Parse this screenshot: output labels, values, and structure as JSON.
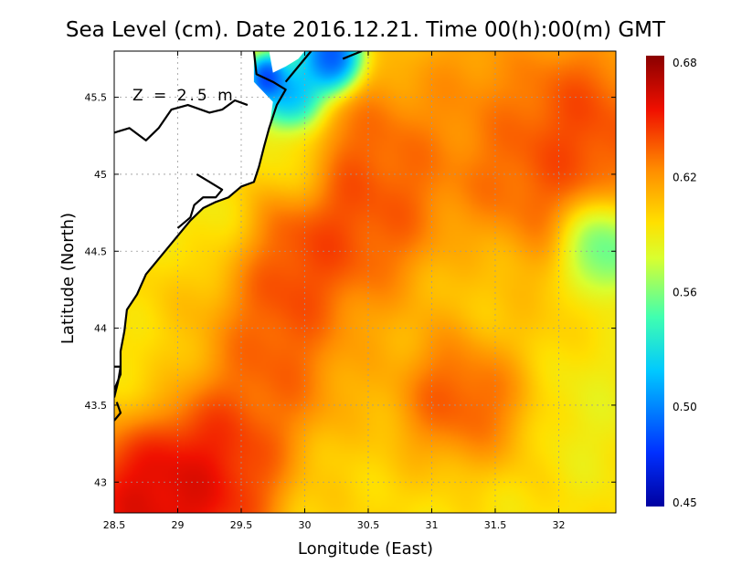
{
  "chart_data": {
    "type": "heatmap",
    "title": "Sea Level (cm). Date 2016.12.21. Time 00(h):00(m) GMT",
    "xlabel": "Longitude (East)",
    "ylabel": "Latitude (North)",
    "annotation": "Z = 2.5 m",
    "xlim": [
      28.5,
      32.45
    ],
    "ylim": [
      42.8,
      45.8
    ],
    "x_ticks": [
      28.5,
      29,
      29.5,
      30,
      30.5,
      31,
      31.5,
      32
    ],
    "x_tick_labels": [
      "28.5",
      "29",
      "29.5",
      "30",
      "30.5",
      "31",
      "31.5",
      "32"
    ],
    "y_ticks": [
      43,
      43.5,
      44,
      44.5,
      45,
      45.5
    ],
    "y_tick_labels": [
      "43",
      "43.5",
      "44",
      "44.5",
      "45",
      "45.5"
    ],
    "grid": true,
    "colorbar": {
      "min": 0.45,
      "max": 0.68,
      "ticks": [
        0.45,
        0.5,
        0.56,
        0.62,
        0.68
      ],
      "tick_labels": [
        "0.45",
        "0.50",
        "0.56",
        "0.62",
        "0.68"
      ]
    },
    "features": [
      {
        "x": 28.85,
        "y": 42.9,
        "value": 0.68,
        "spread": 0.35
      },
      {
        "x": 29.3,
        "y": 43.1,
        "value": 0.66,
        "spread": 0.3
      },
      {
        "x": 29.7,
        "y": 43.8,
        "value": 0.64,
        "spread": 0.35
      },
      {
        "x": 29.9,
        "y": 44.35,
        "value": 0.655,
        "spread": 0.4
      },
      {
        "x": 30.4,
        "y": 44.7,
        "value": 0.645,
        "spread": 0.35
      },
      {
        "x": 30.6,
        "y": 45.05,
        "value": 0.64,
        "spread": 0.3
      },
      {
        "x": 31.2,
        "y": 43.5,
        "value": 0.655,
        "spread": 0.3
      },
      {
        "x": 31.8,
        "y": 45.0,
        "value": 0.645,
        "spread": 0.4
      },
      {
        "x": 32.2,
        "y": 45.3,
        "value": 0.65,
        "spread": 0.3
      },
      {
        "x": 31.3,
        "y": 45.5,
        "value": 0.625,
        "spread": 0.3
      },
      {
        "x": 32.3,
        "y": 44.55,
        "value": 0.52,
        "spread": 0.18
      },
      {
        "x": 31.2,
        "y": 42.8,
        "value": 0.59,
        "spread": 0.35
      },
      {
        "x": 30.5,
        "y": 42.9,
        "value": 0.6,
        "spread": 0.3
      },
      {
        "x": 32.25,
        "y": 43.45,
        "value": 0.585,
        "spread": 0.25
      },
      {
        "x": 31.5,
        "y": 44.2,
        "value": 0.6,
        "spread": 0.3
      },
      {
        "x": 30.5,
        "y": 43.9,
        "value": 0.605,
        "spread": 0.3
      },
      {
        "x": 29.1,
        "y": 44.1,
        "value": 0.6,
        "spread": 0.28
      },
      {
        "x": 28.7,
        "y": 43.7,
        "value": 0.59,
        "spread": 0.25
      },
      {
        "x": 29.3,
        "y": 44.65,
        "value": 0.575,
        "spread": 0.25
      },
      {
        "x": 29.9,
        "y": 45.05,
        "value": 0.57,
        "spread": 0.18
      },
      {
        "x": 29.9,
        "y": 45.5,
        "value": 0.48,
        "spread": 0.14
      },
      {
        "x": 30.2,
        "y": 45.75,
        "value": 0.45,
        "spread": 0.13
      },
      {
        "x": 29.7,
        "y": 45.62,
        "value": 0.45,
        "spread": 0.08
      }
    ],
    "land": [
      [
        [
          28.5,
          45.8
        ],
        [
          29.6,
          45.8
        ],
        [
          29.6,
          45.6
        ],
        [
          29.75,
          45.47
        ],
        [
          29.72,
          45.3
        ],
        [
          29.68,
          45.18
        ],
        [
          29.64,
          45.05
        ],
        [
          29.6,
          44.95
        ],
        [
          29.5,
          44.92
        ],
        [
          29.4,
          44.85
        ],
        [
          29.2,
          44.78
        ],
        [
          29.05,
          44.65
        ],
        [
          28.95,
          44.55
        ],
        [
          28.85,
          44.45
        ],
        [
          28.75,
          44.35
        ],
        [
          28.68,
          44.22
        ],
        [
          28.6,
          44.12
        ],
        [
          28.58,
          43.98
        ],
        [
          28.55,
          43.85
        ],
        [
          28.55,
          43.7
        ],
        [
          28.5,
          43.6
        ],
        [
          28.5,
          45.8
        ]
      ],
      [
        [
          29.72,
          45.8
        ],
        [
          30.0,
          45.8
        ],
        [
          29.95,
          45.75
        ],
        [
          29.85,
          45.7
        ],
        [
          29.75,
          45.66
        ],
        [
          29.72,
          45.8
        ]
      ]
    ],
    "coastlines": [
      [
        [
          28.5,
          45.27
        ],
        [
          28.62,
          45.3
        ],
        [
          28.75,
          45.22
        ],
        [
          28.85,
          45.3
        ],
        [
          28.95,
          45.42
        ],
        [
          29.08,
          45.45
        ],
        [
          29.25,
          45.4
        ],
        [
          29.35,
          45.42
        ],
        [
          29.45,
          45.48
        ],
        [
          29.55,
          45.45
        ]
      ],
      [
        [
          29.6,
          45.8
        ],
        [
          29.62,
          45.65
        ],
        [
          29.75,
          45.6
        ],
        [
          29.85,
          45.55
        ],
        [
          29.78,
          45.45
        ],
        [
          29.72,
          45.3
        ],
        [
          29.68,
          45.18
        ],
        [
          29.64,
          45.05
        ],
        [
          29.6,
          44.95
        ],
        [
          29.5,
          44.92
        ],
        [
          29.4,
          44.85
        ],
        [
          29.3,
          44.82
        ],
        [
          29.2,
          44.78
        ],
        [
          29.1,
          44.7
        ],
        [
          29.05,
          44.65
        ],
        [
          28.95,
          44.55
        ],
        [
          28.85,
          44.45
        ],
        [
          28.75,
          44.35
        ],
        [
          28.68,
          44.22
        ],
        [
          28.6,
          44.12
        ],
        [
          28.58,
          43.98
        ],
        [
          28.55,
          43.85
        ],
        [
          28.55,
          43.7
        ],
        [
          28.5,
          43.6
        ]
      ],
      [
        [
          29.15,
          45.0
        ],
        [
          29.25,
          44.95
        ],
        [
          29.35,
          44.9
        ],
        [
          29.3,
          44.85
        ],
        [
          29.2,
          44.85
        ],
        [
          29.13,
          44.8
        ],
        [
          29.1,
          44.72
        ],
        [
          29.0,
          44.65
        ]
      ],
      [
        [
          28.5,
          43.75
        ],
        [
          28.55,
          43.75
        ],
        [
          28.53,
          43.65
        ],
        [
          28.5,
          43.55
        ]
      ],
      [
        [
          28.5,
          43.4
        ],
        [
          28.55,
          43.45
        ],
        [
          28.52,
          43.52
        ]
      ],
      [
        [
          29.85,
          45.6
        ],
        [
          29.95,
          45.7
        ],
        [
          30.05,
          45.8
        ]
      ],
      [
        [
          30.3,
          45.75
        ],
        [
          30.45,
          45.8
        ]
      ]
    ]
  }
}
